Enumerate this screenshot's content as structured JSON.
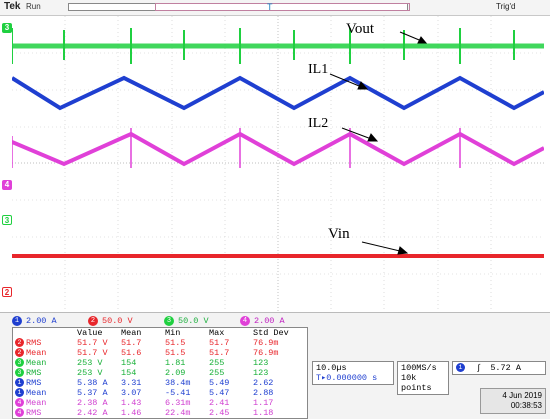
{
  "header": {
    "brand": "Tek",
    "run_state": "Run",
    "trig_status": "Trig'd"
  },
  "colors": {
    "ch1": "#1f3fd0",
    "ch2": "#e8262b",
    "ch3": "#1fd040",
    "ch4": "#e040d8"
  },
  "annotations": {
    "vout": "Vout",
    "il1": "IL1",
    "il2": "IL2",
    "vin": "Vin"
  },
  "channels": [
    {
      "num": "1",
      "scale": "2.00 A"
    },
    {
      "num": "2",
      "scale": "50.0 V"
    },
    {
      "num": "3",
      "scale": "50.0 V"
    },
    {
      "num": "4",
      "scale": "2.00 A"
    }
  ],
  "measurements": {
    "headers": [
      "",
      "Value",
      "Mean",
      "Min",
      "Max",
      "Std Dev"
    ],
    "rows": [
      {
        "ch": "2",
        "name": "RMS",
        "value": "51.7 V",
        "mean": "51.7",
        "min": "51.5",
        "max": "51.7",
        "std": "76.9m"
      },
      {
        "ch": "2",
        "name": "Mean",
        "value": "51.7 V",
        "mean": "51.6",
        "min": "51.5",
        "max": "51.7",
        "std": "76.9m"
      },
      {
        "ch": "3",
        "name": "Mean",
        "value": "253 V",
        "mean": "154",
        "min": "1.81",
        "max": "255",
        "std": "123"
      },
      {
        "ch": "3",
        "name": "RMS",
        "value": "253 V",
        "mean": "154",
        "min": "2.09",
        "max": "255",
        "std": "123"
      },
      {
        "ch": "1",
        "name": "RMS",
        "value": "5.38 A",
        "mean": "3.31",
        "min": "38.4m",
        "max": "5.49",
        "std": "2.62"
      },
      {
        "ch": "1",
        "name": "Mean",
        "value": "5.37 A",
        "mean": "3.07",
        "min": "-5.41",
        "max": "5.47",
        "std": "2.88"
      },
      {
        "ch": "4",
        "name": "Mean",
        "value": "2.38 A",
        "mean": "1.43",
        "min": "6.31m",
        "max": "2.41",
        "std": "1.17"
      },
      {
        "ch": "4",
        "name": "RMS",
        "value": "2.42 A",
        "mean": "1.46",
        "min": "22.4m",
        "max": "2.45",
        "std": "1.18"
      }
    ]
  },
  "timebase": {
    "scale": "10.0µs",
    "position": "0.000000 s"
  },
  "acquisition": {
    "rate": "100MS/s",
    "points": "10k points"
  },
  "trigger": {
    "channel": "1",
    "level": "5.72 A"
  },
  "date": {
    "day": "4 Jun 2019",
    "time": "00:38:53"
  }
}
